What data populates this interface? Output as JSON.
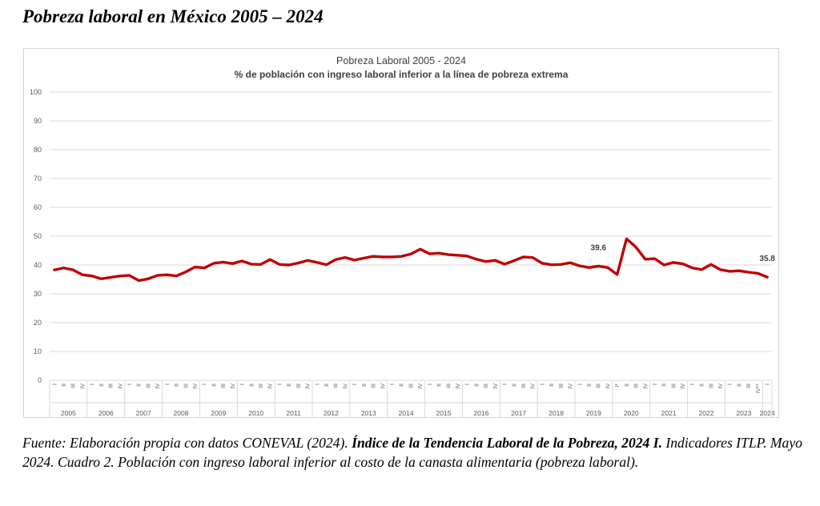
{
  "heading": "Pobreza laboral en México 2005 – 2024",
  "source": {
    "part1": "Fuente: Elaboración propia con datos CONEVAL (2024). ",
    "part2": "Índice de la Tendencia Laboral de la Pobreza, 2024 I.",
    "part3": " Indicadores ITLP. Mayo 2024. Cuadro 2. Población con ingreso laboral inferior al costo de la canasta alimentaria (pobreza laboral)."
  },
  "chart_data": {
    "type": "line",
    "title": "Pobreza Laboral 2005 - 2024",
    "subtitle": "% de población con ingreso laboral inferior a la línea de pobreza extrema",
    "xlabel": "",
    "ylabel": "",
    "ylim": [
      0,
      100
    ],
    "yticks": [
      0,
      10,
      20,
      30,
      40,
      50,
      60,
      70,
      80,
      90,
      100
    ],
    "grid": true,
    "legend": "none",
    "line_color": "#c00000",
    "years": [
      "2005",
      "2006",
      "2007",
      "2008",
      "2009",
      "2010",
      "2011",
      "2012",
      "2013",
      "2014",
      "2015",
      "2016",
      "2017",
      "2018",
      "2019",
      "2020",
      "2021",
      "2022",
      "2023",
      "2024"
    ],
    "quarters": [
      "I",
      "II",
      "III",
      "IV",
      "I",
      "II",
      "III",
      "IV",
      "I",
      "II",
      "III",
      "IV",
      "I",
      "II",
      "III",
      "IV",
      "I",
      "II",
      "III",
      "IV",
      "I",
      "II",
      "III",
      "IV",
      "I",
      "II",
      "III",
      "IV",
      "I",
      "II",
      "III",
      "IV",
      "I",
      "II",
      "III",
      "IV",
      "I",
      "II",
      "III",
      "IV",
      "I",
      "II",
      "III",
      "IV",
      "I",
      "II",
      "III",
      "IV",
      "I",
      "II",
      "III",
      "IV",
      "I",
      "II",
      "III",
      "IV",
      "I",
      "II",
      "III",
      "IV",
      "I*",
      "II",
      "III",
      "IV",
      "I",
      "II",
      "III",
      "IV",
      "I",
      "II",
      "III",
      "IV",
      "I",
      "II",
      "III",
      "IV**",
      "I"
    ],
    "values": [
      38.3,
      39.0,
      38.3,
      36.6,
      36.2,
      35.2,
      35.7,
      36.2,
      36.4,
      34.6,
      35.2,
      36.4,
      36.6,
      36.2,
      37.6,
      39.3,
      39.0,
      40.6,
      41.0,
      40.5,
      41.4,
      40.3,
      40.2,
      41.9,
      40.2,
      40.0,
      40.7,
      41.6,
      40.9,
      40.1,
      41.9,
      42.6,
      41.7,
      42.4,
      43.0,
      42.8,
      42.8,
      43.0,
      43.8,
      45.5,
      43.9,
      44.1,
      43.6,
      43.4,
      43.1,
      42.0,
      41.2,
      41.6,
      40.3,
      41.5,
      42.8,
      42.6,
      40.6,
      40.1,
      40.2,
      40.8,
      39.7,
      39.1,
      39.6,
      39.1,
      36.7,
      49.1,
      46.2,
      42.0,
      42.2,
      40.0,
      40.9,
      40.4,
      39.0,
      38.4,
      40.2,
      38.4,
      37.8,
      38.0,
      37.5,
      37.1,
      35.8
    ],
    "annotations": [
      {
        "x_index": 58,
        "text": "39.6"
      },
      {
        "x_index": 76,
        "text": "35.8"
      }
    ]
  }
}
